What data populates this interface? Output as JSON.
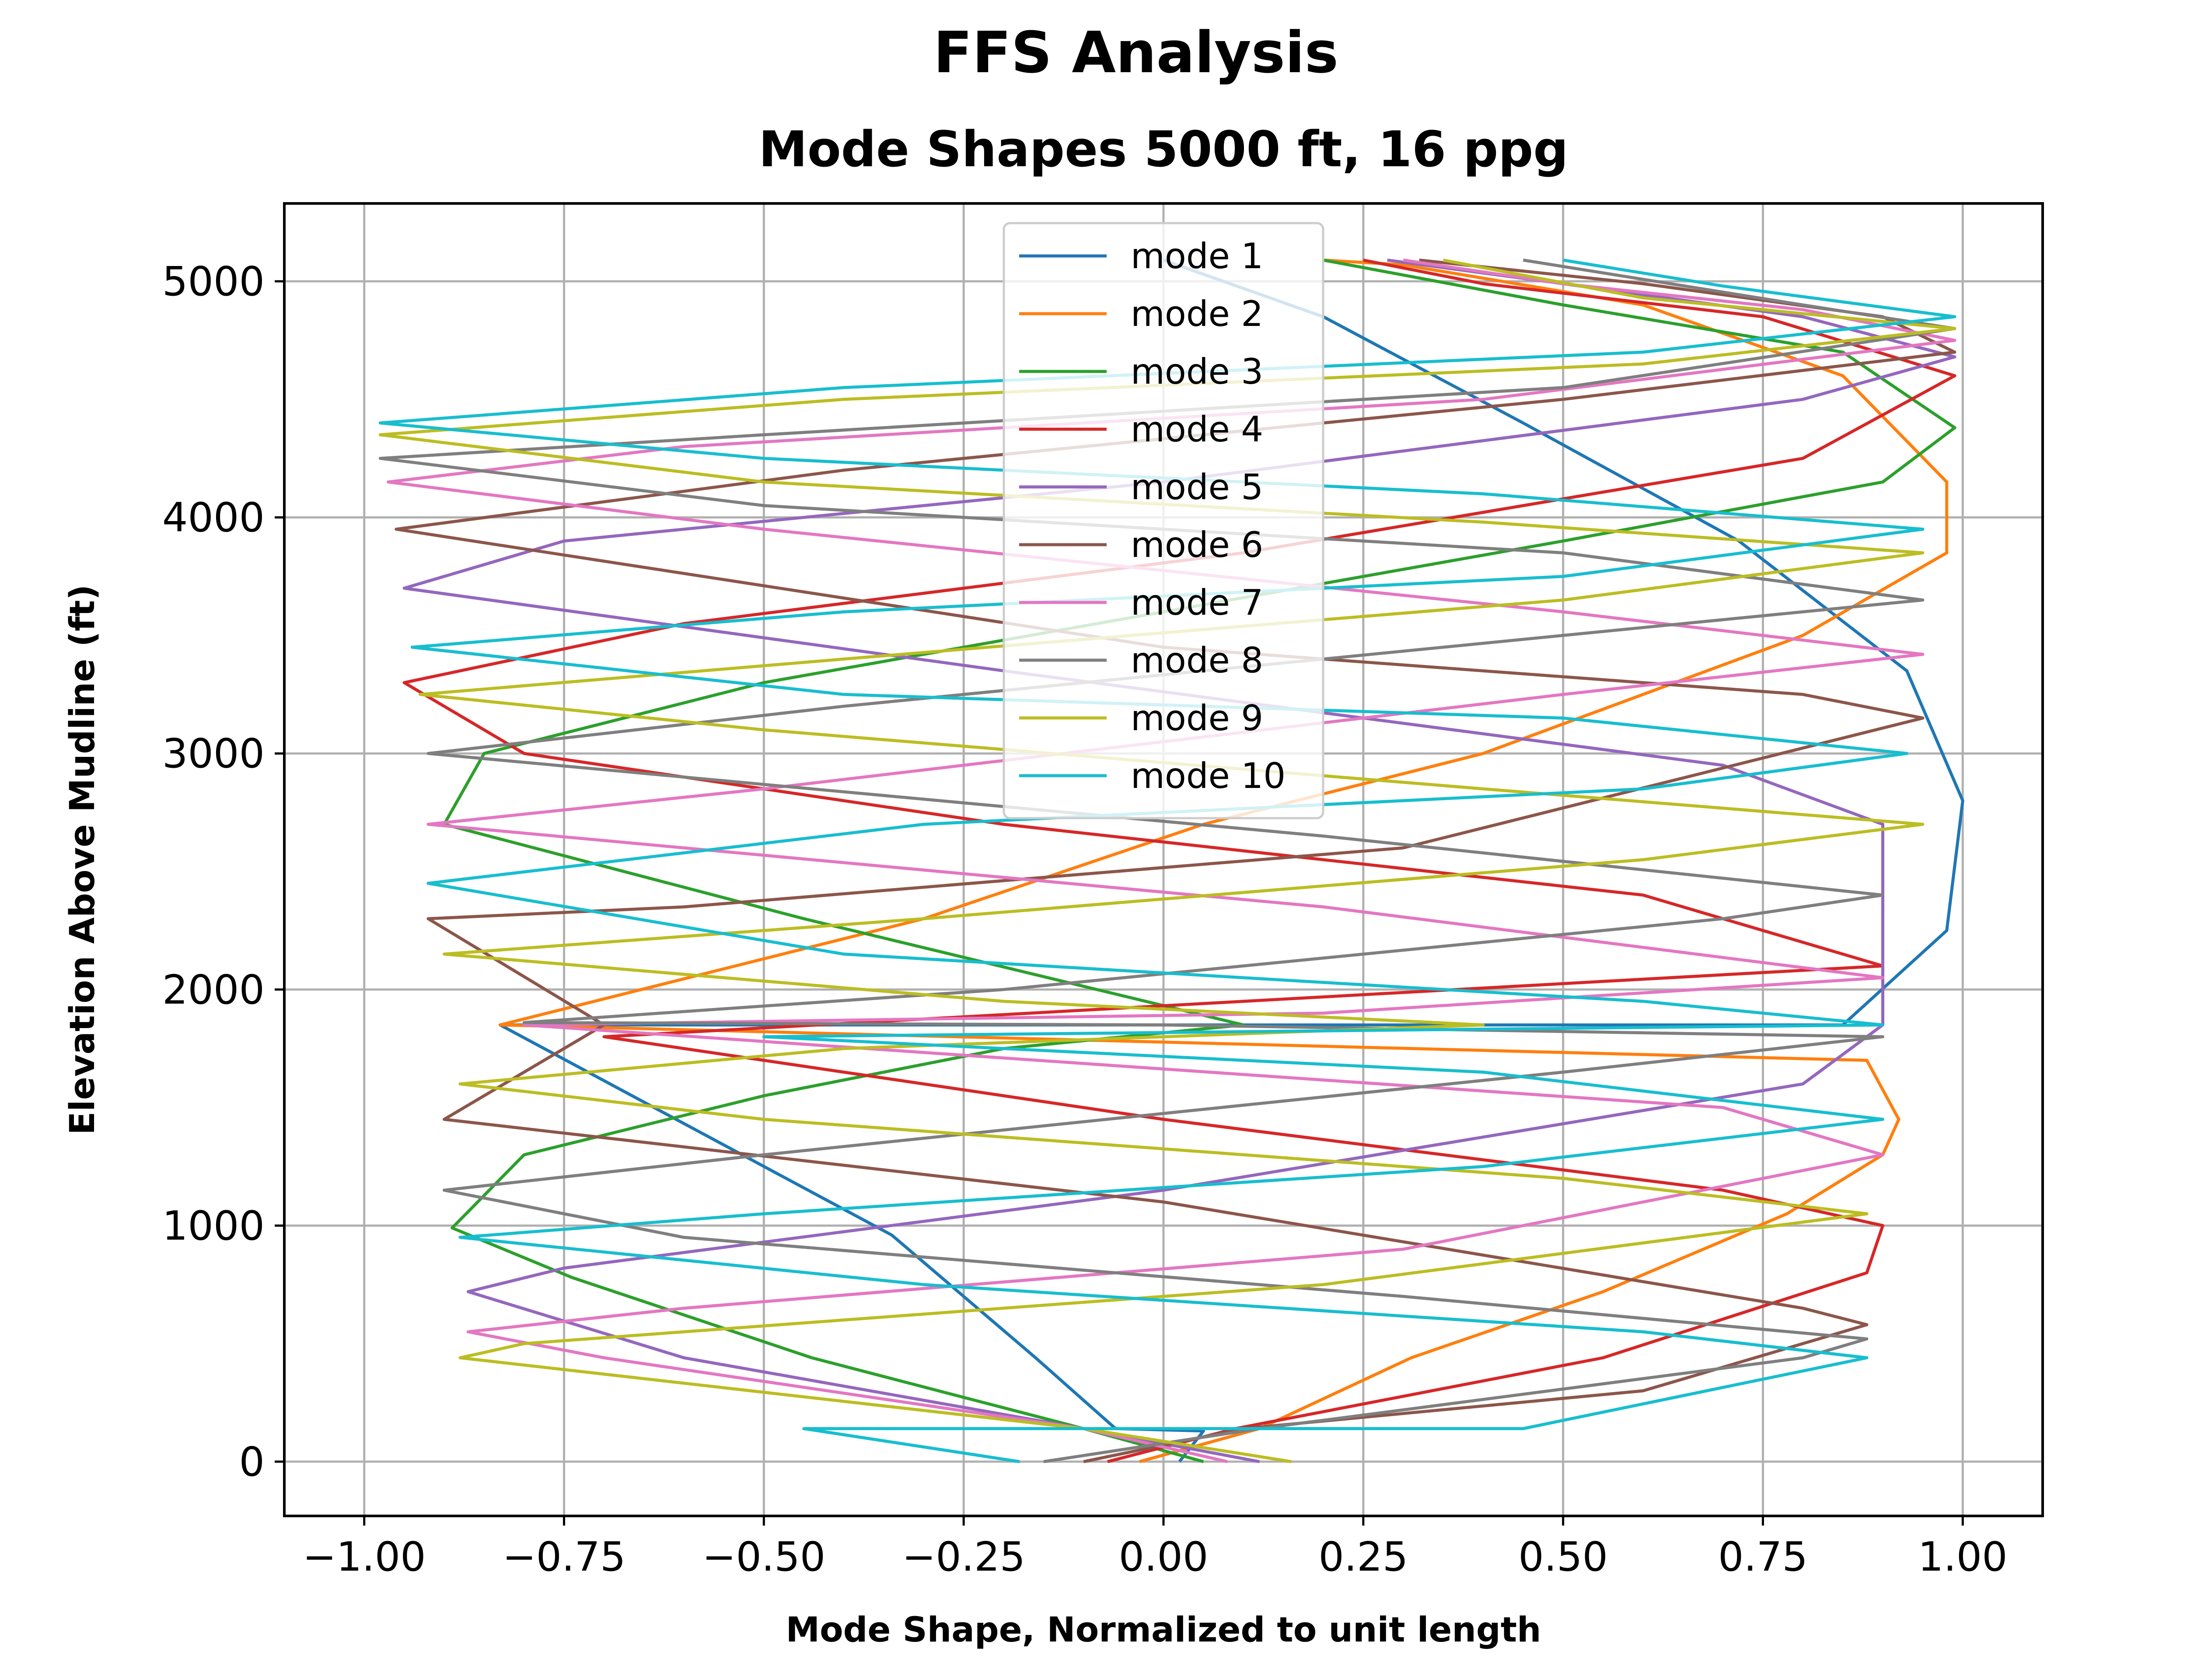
{
  "chart_data": {
    "type": "line",
    "suptitle": "FFS Analysis",
    "title": "Mode Shapes 5000 ft, 16 ppg",
    "xlabel": "Mode Shape, Normalized to unit length",
    "ylabel": "Elevation Above Mudline (ft)",
    "xlim": [
      -1.1,
      1.1
    ],
    "ylim": [
      -230,
      5330
    ],
    "xticks": [
      -1.0,
      -0.75,
      -0.5,
      -0.25,
      0.0,
      0.25,
      0.5,
      0.75,
      1.0
    ],
    "xtick_labels": [
      "−1.00",
      "−0.75",
      "−0.50",
      "−0.25",
      "0.00",
      "0.25",
      "0.50",
      "0.75",
      "1.00"
    ],
    "yticks": [
      0,
      1000,
      2000,
      3000,
      4000,
      5000
    ],
    "ytick_labels": [
      "0",
      "1000",
      "2000",
      "3000",
      "4000",
      "5000"
    ],
    "grid": true,
    "legend_position": "upper-center",
    "series": [
      {
        "name": "mode 1",
        "color": "#1f77b4",
        "points": [
          [
            0.02,
            0
          ],
          [
            0.05,
            130
          ],
          [
            -0.06,
            140
          ],
          [
            -0.16,
            440
          ],
          [
            -0.34,
            960
          ],
          [
            -0.83,
            1850
          ],
          [
            0.85,
            1850
          ],
          [
            0.98,
            2250
          ],
          [
            1.0,
            2800
          ],
          [
            0.93,
            3350
          ],
          [
            0.72,
            3900
          ],
          [
            0.45,
            4400
          ],
          [
            0.2,
            4850
          ],
          [
            0.0,
            5090
          ]
        ]
      },
      {
        "name": "mode 2",
        "color": "#ff7f0e",
        "points": [
          [
            -0.03,
            0
          ],
          [
            0.12,
            140
          ],
          [
            0.31,
            440
          ],
          [
            0.55,
            720
          ],
          [
            0.78,
            1050
          ],
          [
            0.9,
            1300
          ],
          [
            0.92,
            1450
          ],
          [
            0.88,
            1700
          ],
          [
            -0.83,
            1850
          ],
          [
            -0.3,
            2300
          ],
          [
            0.05,
            2700
          ],
          [
            0.4,
            3000
          ],
          [
            0.8,
            3500
          ],
          [
            0.98,
            3850
          ],
          [
            0.98,
            4150
          ],
          [
            0.85,
            4600
          ],
          [
            0.6,
            4900
          ],
          [
            0.3,
            5070
          ],
          [
            0.2,
            5090
          ]
        ]
      },
      {
        "name": "mode 3",
        "color": "#2ca02c",
        "points": [
          [
            0.05,
            0
          ],
          [
            -0.1,
            140
          ],
          [
            -0.44,
            440
          ],
          [
            -0.74,
            780
          ],
          [
            -0.89,
            990
          ],
          [
            -0.8,
            1300
          ],
          [
            -0.5,
            1550
          ],
          [
            -0.2,
            1750
          ],
          [
            0.1,
            1850
          ],
          [
            -0.45,
            2300
          ],
          [
            -0.9,
            2700
          ],
          [
            -0.85,
            3000
          ],
          [
            -0.5,
            3300
          ],
          [
            0.0,
            3600
          ],
          [
            0.5,
            3900
          ],
          [
            0.9,
            4150
          ],
          [
            0.99,
            4380
          ],
          [
            0.85,
            4700
          ],
          [
            0.5,
            4900
          ],
          [
            0.2,
            5090
          ]
        ]
      },
      {
        "name": "mode 4",
        "color": "#d62728",
        "points": [
          [
            -0.07,
            0
          ],
          [
            0.09,
            140
          ],
          [
            0.55,
            440
          ],
          [
            0.88,
            800
          ],
          [
            0.9,
            1000
          ],
          [
            0.7,
            1150
          ],
          [
            0.0,
            1450
          ],
          [
            -0.7,
            1800
          ],
          [
            0.9,
            2100
          ],
          [
            0.6,
            2400
          ],
          [
            -0.2,
            2700
          ],
          [
            -0.8,
            3000
          ],
          [
            -0.95,
            3300
          ],
          [
            -0.6,
            3550
          ],
          [
            0.1,
            3850
          ],
          [
            0.8,
            4250
          ],
          [
            0.99,
            4600
          ],
          [
            0.75,
            4850
          ],
          [
            0.4,
            4990
          ],
          [
            0.25,
            5090
          ]
        ]
      },
      {
        "name": "mode 5",
        "color": "#9467bd",
        "points": [
          [
            0.12,
            0
          ],
          [
            -0.1,
            140
          ],
          [
            -0.6,
            440
          ],
          [
            -0.87,
            720
          ],
          [
            -0.75,
            820
          ],
          [
            0.0,
            1150
          ],
          [
            0.8,
            1600
          ],
          [
            0.9,
            1850
          ],
          [
            0.9,
            2700
          ],
          [
            0.7,
            2950
          ],
          [
            -0.2,
            3350
          ],
          [
            -0.95,
            3700
          ],
          [
            -0.75,
            3900
          ],
          [
            0.0,
            4150
          ],
          [
            0.8,
            4500
          ],
          [
            0.99,
            4680
          ],
          [
            0.8,
            4850
          ],
          [
            0.5,
            4990
          ],
          [
            0.28,
            5090
          ]
        ]
      },
      {
        "name": "mode 6",
        "color": "#8c564b",
        "points": [
          [
            -0.1,
            0
          ],
          [
            0.1,
            140
          ],
          [
            0.6,
            300
          ],
          [
            0.88,
            580
          ],
          [
            0.8,
            650
          ],
          [
            0.0,
            1100
          ],
          [
            -0.9,
            1450
          ],
          [
            -0.7,
            1850
          ],
          [
            -0.92,
            2300
          ],
          [
            -0.6,
            2350
          ],
          [
            0.3,
            2600
          ],
          [
            0.95,
            3150
          ],
          [
            0.8,
            3250
          ],
          [
            0.0,
            3450
          ],
          [
            -0.96,
            3950
          ],
          [
            -0.4,
            4200
          ],
          [
            0.5,
            4500
          ],
          [
            0.99,
            4700
          ],
          [
            0.9,
            4850
          ],
          [
            0.6,
            4990
          ],
          [
            0.32,
            5090
          ]
        ]
      },
      {
        "name": "mode 7",
        "color": "#e377c2",
        "points": [
          [
            0.08,
            0
          ],
          [
            -0.1,
            140
          ],
          [
            -0.7,
            440
          ],
          [
            -0.87,
            550
          ],
          [
            -0.6,
            650
          ],
          [
            0.3,
            900
          ],
          [
            0.9,
            1300
          ],
          [
            0.7,
            1500
          ],
          [
            -0.8,
            1850
          ],
          [
            0.2,
            1900
          ],
          [
            0.9,
            2050
          ],
          [
            0.2,
            2350
          ],
          [
            -0.92,
            2700
          ],
          [
            -0.5,
            2850
          ],
          [
            0.5,
            3250
          ],
          [
            0.95,
            3420
          ],
          [
            0.5,
            3600
          ],
          [
            -0.5,
            3950
          ],
          [
            -0.97,
            4150
          ],
          [
            -0.6,
            4300
          ],
          [
            0.4,
            4500
          ],
          [
            0.99,
            4750
          ],
          [
            0.8,
            4880
          ],
          [
            0.5,
            4990
          ],
          [
            0.3,
            5090
          ]
        ]
      },
      {
        "name": "mode 8",
        "color": "#7f7f7f",
        "points": [
          [
            -0.15,
            0
          ],
          [
            0.12,
            140
          ],
          [
            0.8,
            440
          ],
          [
            0.88,
            520
          ],
          [
            0.3,
            700
          ],
          [
            -0.6,
            950
          ],
          [
            -0.9,
            1150
          ],
          [
            -0.5,
            1300
          ],
          [
            0.5,
            1650
          ],
          [
            0.9,
            1800
          ],
          [
            0.0,
            1850
          ],
          [
            -0.8,
            1860
          ],
          [
            -0.2,
            2000
          ],
          [
            0.7,
            2300
          ],
          [
            0.9,
            2400
          ],
          [
            0.2,
            2650
          ],
          [
            -0.92,
            3000
          ],
          [
            -0.4,
            3200
          ],
          [
            0.5,
            3500
          ],
          [
            0.95,
            3650
          ],
          [
            0.5,
            3850
          ],
          [
            -0.5,
            4050
          ],
          [
            -0.98,
            4250
          ],
          [
            -0.5,
            4350
          ],
          [
            0.5,
            4550
          ],
          [
            0.99,
            4800
          ],
          [
            0.8,
            4900
          ],
          [
            0.45,
            5090
          ]
        ]
      },
      {
        "name": "mode 9",
        "color": "#bcbd22",
        "points": [
          [
            0.16,
            0
          ],
          [
            -0.1,
            140
          ],
          [
            -0.88,
            440
          ],
          [
            -0.8,
            500
          ],
          [
            0.2,
            750
          ],
          [
            0.88,
            1050
          ],
          [
            0.5,
            1200
          ],
          [
            -0.5,
            1450
          ],
          [
            -0.88,
            1600
          ],
          [
            -0.4,
            1750
          ],
          [
            0.4,
            1850
          ],
          [
            -0.2,
            1950
          ],
          [
            -0.9,
            2150
          ],
          [
            -0.3,
            2300
          ],
          [
            0.6,
            2550
          ],
          [
            0.95,
            2700
          ],
          [
            0.4,
            2850
          ],
          [
            -0.5,
            3100
          ],
          [
            -0.93,
            3250
          ],
          [
            -0.4,
            3400
          ],
          [
            0.5,
            3650
          ],
          [
            0.95,
            3850
          ],
          [
            0.4,
            3980
          ],
          [
            -0.5,
            4150
          ],
          [
            -0.98,
            4350
          ],
          [
            -0.4,
            4500
          ],
          [
            0.6,
            4650
          ],
          [
            0.99,
            4800
          ],
          [
            0.6,
            4930
          ],
          [
            0.35,
            5090
          ]
        ]
      },
      {
        "name": "mode 10",
        "color": "#17becf",
        "points": [
          [
            -0.18,
            0
          ],
          [
            -0.45,
            140
          ],
          [
            0.45,
            140
          ],
          [
            0.88,
            440
          ],
          [
            0.6,
            550
          ],
          [
            -0.3,
            750
          ],
          [
            -0.88,
            950
          ],
          [
            -0.5,
            1050
          ],
          [
            0.4,
            1250
          ],
          [
            0.9,
            1450
          ],
          [
            0.4,
            1650
          ],
          [
            -0.5,
            1800
          ],
          [
            0.9,
            1850
          ],
          [
            0.6,
            1950
          ],
          [
            -0.4,
            2150
          ],
          [
            -0.92,
            2450
          ],
          [
            -0.3,
            2700
          ],
          [
            0.6,
            2850
          ],
          [
            0.93,
            3000
          ],
          [
            0.5,
            3150
          ],
          [
            -0.4,
            3250
          ],
          [
            -0.94,
            3450
          ],
          [
            -0.4,
            3600
          ],
          [
            0.5,
            3750
          ],
          [
            0.95,
            3950
          ],
          [
            0.4,
            4100
          ],
          [
            -0.5,
            4250
          ],
          [
            -0.98,
            4400
          ],
          [
            -0.4,
            4550
          ],
          [
            0.6,
            4700
          ],
          [
            0.99,
            4850
          ],
          [
            0.7,
            4980
          ],
          [
            0.5,
            5090
          ]
        ]
      }
    ]
  }
}
